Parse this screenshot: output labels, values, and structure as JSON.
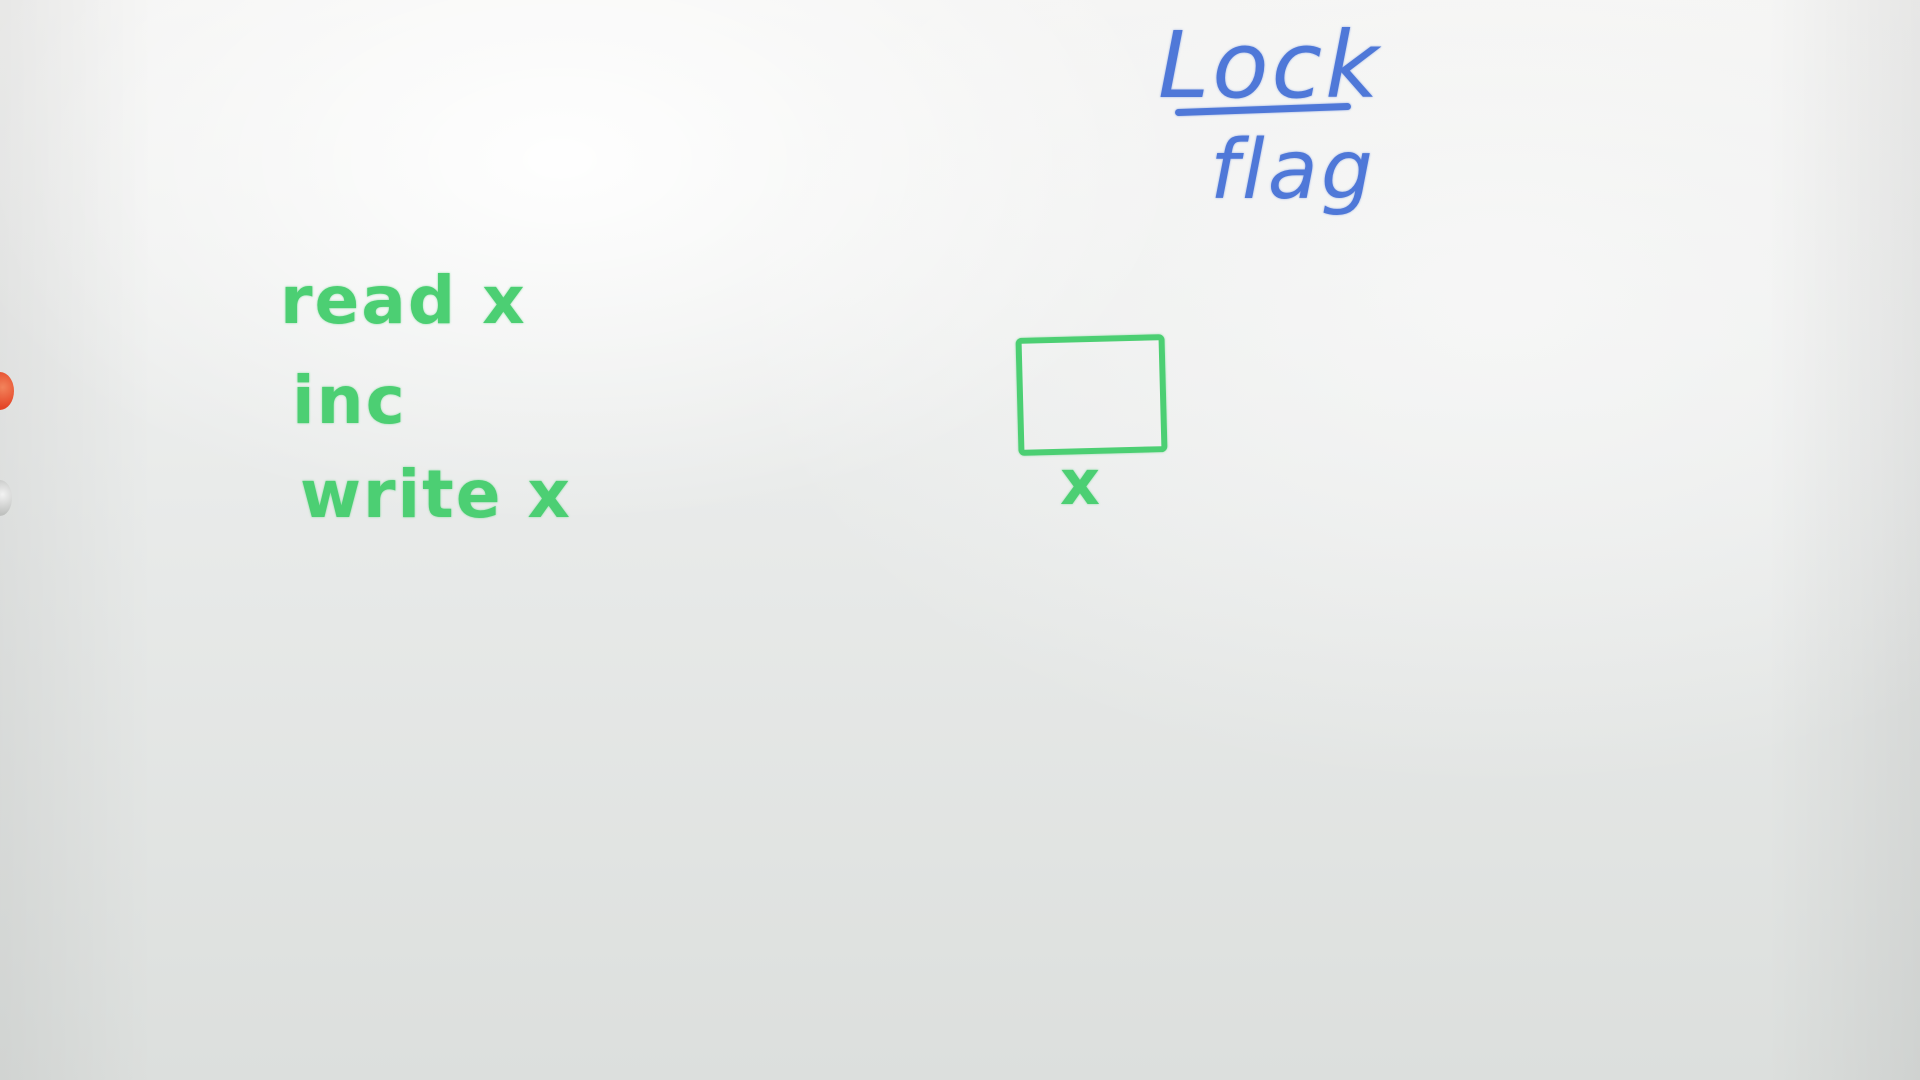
{
  "whiteboard": {
    "left_notes": [
      "read x",
      "inc",
      "write x"
    ],
    "box_label": "x",
    "lock_flag": {
      "top": "Lock",
      "bottom": "flag"
    }
  },
  "colors": {
    "green_marker": "#4ccf73",
    "blue_marker": "#4f78d8",
    "board": "#ecedec"
  }
}
